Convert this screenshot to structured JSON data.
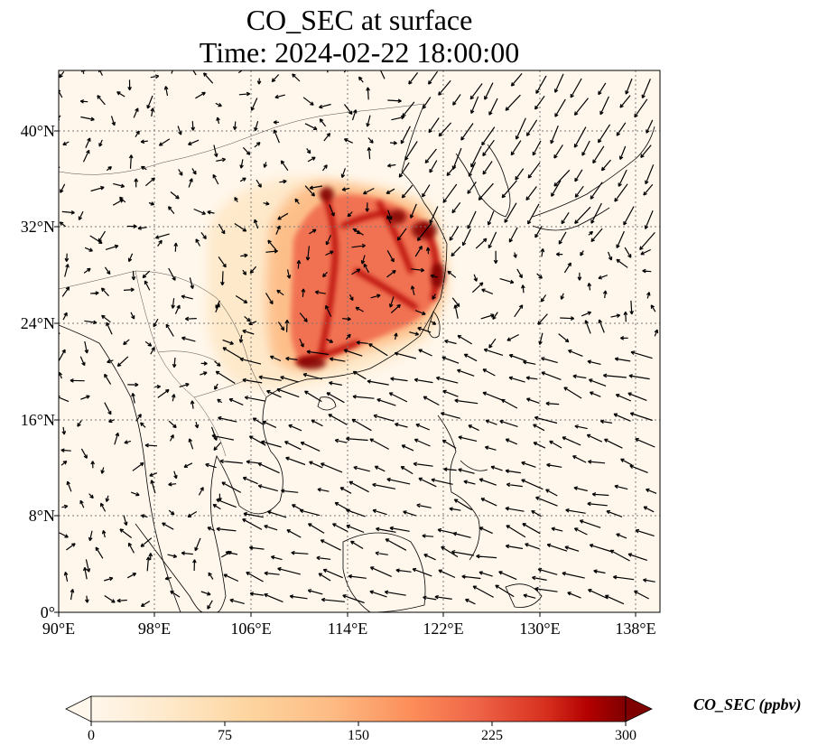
{
  "title": {
    "line1": "CO_SEC at surface",
    "line2": "Time: 2024-02-22 18:00:00"
  },
  "lat_ticks": [
    "0°",
    "8°N",
    "16°N",
    "24°N",
    "32°N",
    "40°N"
  ],
  "lon_ticks": [
    "90°E",
    "98°E",
    "106°E",
    "114°E",
    "122°E",
    "130°E",
    "138°E"
  ],
  "colorbar": {
    "label": "CO_SEC (ppbv)",
    "ticks": [
      "0",
      "75",
      "150",
      "225",
      "300"
    ],
    "colormap": "OrRd",
    "range": [
      0,
      300
    ],
    "extend": "both"
  },
  "colors": {
    "background": "#fff7ec",
    "low": "#fdd49e",
    "mid": "#ef6548",
    "high": "#7f0000"
  },
  "map": {
    "lon_range": [
      90,
      140
    ],
    "lat_range": [
      0,
      45
    ],
    "gridlines": "dotted",
    "features": [
      "coastlines",
      "country-borders",
      "wind-vectors",
      "CO_SEC-field"
    ],
    "plume_peak_region": "Eastern China (~108–122°E, 20–35°N)"
  }
}
